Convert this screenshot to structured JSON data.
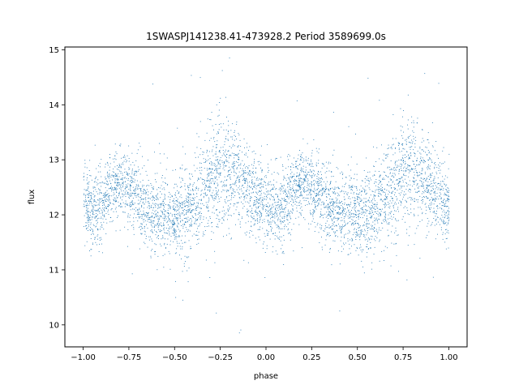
{
  "chart_data": {
    "type": "scatter",
    "title": "1SWASPJ141238.41-473928.2 Period 3589699.0s",
    "xlabel": "phase",
    "ylabel": "flux",
    "xlim": [
      -1.1,
      1.1
    ],
    "ylim": [
      9.6,
      15.05
    ],
    "x_ticks": [
      -1.0,
      -0.75,
      -0.5,
      -0.25,
      0.0,
      0.25,
      0.5,
      0.75,
      1.0
    ],
    "x_tick_labels": [
      "−1.00",
      "−0.75",
      "−0.50",
      "−0.25",
      "0.00",
      "0.25",
      "0.50",
      "0.75",
      "1.00"
    ],
    "y_ticks": [
      10,
      11,
      12,
      13,
      14,
      15
    ],
    "y_tick_labels": [
      "10",
      "11",
      "12",
      "13",
      "14",
      "15"
    ],
    "grid": false,
    "marker_color": "#1f77b4",
    "series": [
      {
        "profile_phase": [
          0.0,
          0.05,
          0.1,
          0.15,
          0.2,
          0.25,
          0.3,
          0.35,
          0.4,
          0.45,
          0.5,
          0.55,
          0.6,
          0.65,
          0.7,
          0.75,
          0.8,
          0.85,
          0.9,
          0.95,
          1.0
        ],
        "profile_mean_flux": [
          12.2,
          12.1,
          12.2,
          12.5,
          12.6,
          12.5,
          12.3,
          12.1,
          12.05,
          12.0,
          12.0,
          12.05,
          12.1,
          12.4,
          12.6,
          12.8,
          12.9,
          12.7,
          12.5,
          12.3,
          12.1
        ],
        "profile_spread": [
          0.35,
          0.35,
          0.35,
          0.3,
          0.3,
          0.3,
          0.35,
          0.35,
          0.35,
          0.35,
          0.35,
          0.4,
          0.4,
          0.45,
          0.5,
          0.5,
          0.5,
          0.45,
          0.4,
          0.35,
          0.35
        ],
        "outlier_range": [
          9.85,
          14.8
        ],
        "phase_range": [
          -1.0,
          1.0
        ]
      }
    ]
  }
}
